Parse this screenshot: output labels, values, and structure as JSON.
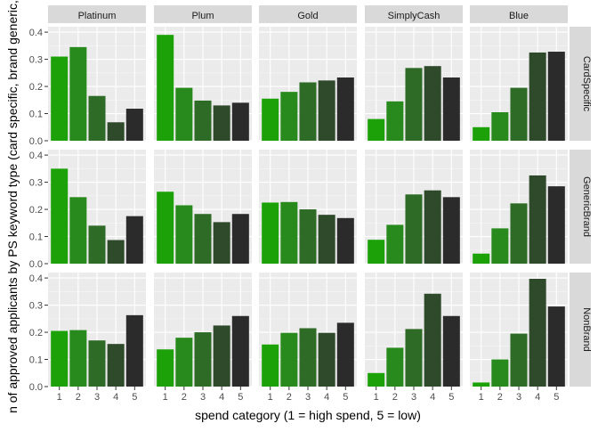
{
  "chart_data": {
    "type": "bar",
    "faceted": true,
    "xlabel": "spend category (1 = high spend, 5 = low)",
    "ylabel": "n of approved applicants by PS keyword type (card specific, brand generic,",
    "x_categories": [
      "1",
      "2",
      "3",
      "4",
      "5"
    ],
    "ylim": [
      0,
      0.42
    ],
    "y_ticks": [
      0.0,
      0.1,
      0.2,
      0.3,
      0.4
    ],
    "y_tick_labels": [
      "0.0",
      "0.1",
      "0.2",
      "0.3",
      "0.4"
    ],
    "grid": true,
    "column_facets": [
      "Platinum",
      "Plum",
      "Gold",
      "SimplyCash",
      "Blue"
    ],
    "row_facets": [
      "CardSpecific",
      "GenericBrand",
      "NonBrand"
    ],
    "bar_colors": [
      "#1ca208",
      "#288a1c",
      "#2e6b26",
      "#2f4a2b",
      "#2b2b2b"
    ],
    "panels": [
      {
        "row": "CardSpecific",
        "col": "Platinum",
        "values": [
          0.31,
          0.345,
          0.165,
          0.068,
          0.118
        ]
      },
      {
        "row": "CardSpecific",
        "col": "Plum",
        "values": [
          0.39,
          0.195,
          0.148,
          0.13,
          0.14
        ]
      },
      {
        "row": "CardSpecific",
        "col": "Gold",
        "values": [
          0.155,
          0.18,
          0.215,
          0.222,
          0.233
        ]
      },
      {
        "row": "CardSpecific",
        "col": "SimplyCash",
        "values": [
          0.08,
          0.145,
          0.268,
          0.275,
          0.233
        ]
      },
      {
        "row": "CardSpecific",
        "col": "Blue",
        "values": [
          0.05,
          0.105,
          0.195,
          0.325,
          0.328
        ]
      },
      {
        "row": "GenericBrand",
        "col": "Platinum",
        "values": [
          0.35,
          0.245,
          0.14,
          0.087,
          0.175
        ]
      },
      {
        "row": "GenericBrand",
        "col": "Plum",
        "values": [
          0.265,
          0.215,
          0.183,
          0.153,
          0.183
        ]
      },
      {
        "row": "GenericBrand",
        "col": "Gold",
        "values": [
          0.225,
          0.227,
          0.2,
          0.18,
          0.168
        ]
      },
      {
        "row": "GenericBrand",
        "col": "SimplyCash",
        "values": [
          0.088,
          0.143,
          0.255,
          0.27,
          0.245
        ]
      },
      {
        "row": "GenericBrand",
        "col": "Blue",
        "values": [
          0.037,
          0.13,
          0.222,
          0.325,
          0.285
        ]
      },
      {
        "row": "NonBrand",
        "col": "Platinum",
        "values": [
          0.205,
          0.208,
          0.17,
          0.157,
          0.263
        ]
      },
      {
        "row": "NonBrand",
        "col": "Plum",
        "values": [
          0.137,
          0.18,
          0.2,
          0.225,
          0.26
        ]
      },
      {
        "row": "NonBrand",
        "col": "Gold",
        "values": [
          0.155,
          0.198,
          0.215,
          0.198,
          0.235
        ]
      },
      {
        "row": "NonBrand",
        "col": "SimplyCash",
        "values": [
          0.05,
          0.143,
          0.212,
          0.342,
          0.26
        ]
      },
      {
        "row": "NonBrand",
        "col": "Blue",
        "values": [
          0.015,
          0.1,
          0.195,
          0.397,
          0.295
        ]
      }
    ]
  }
}
